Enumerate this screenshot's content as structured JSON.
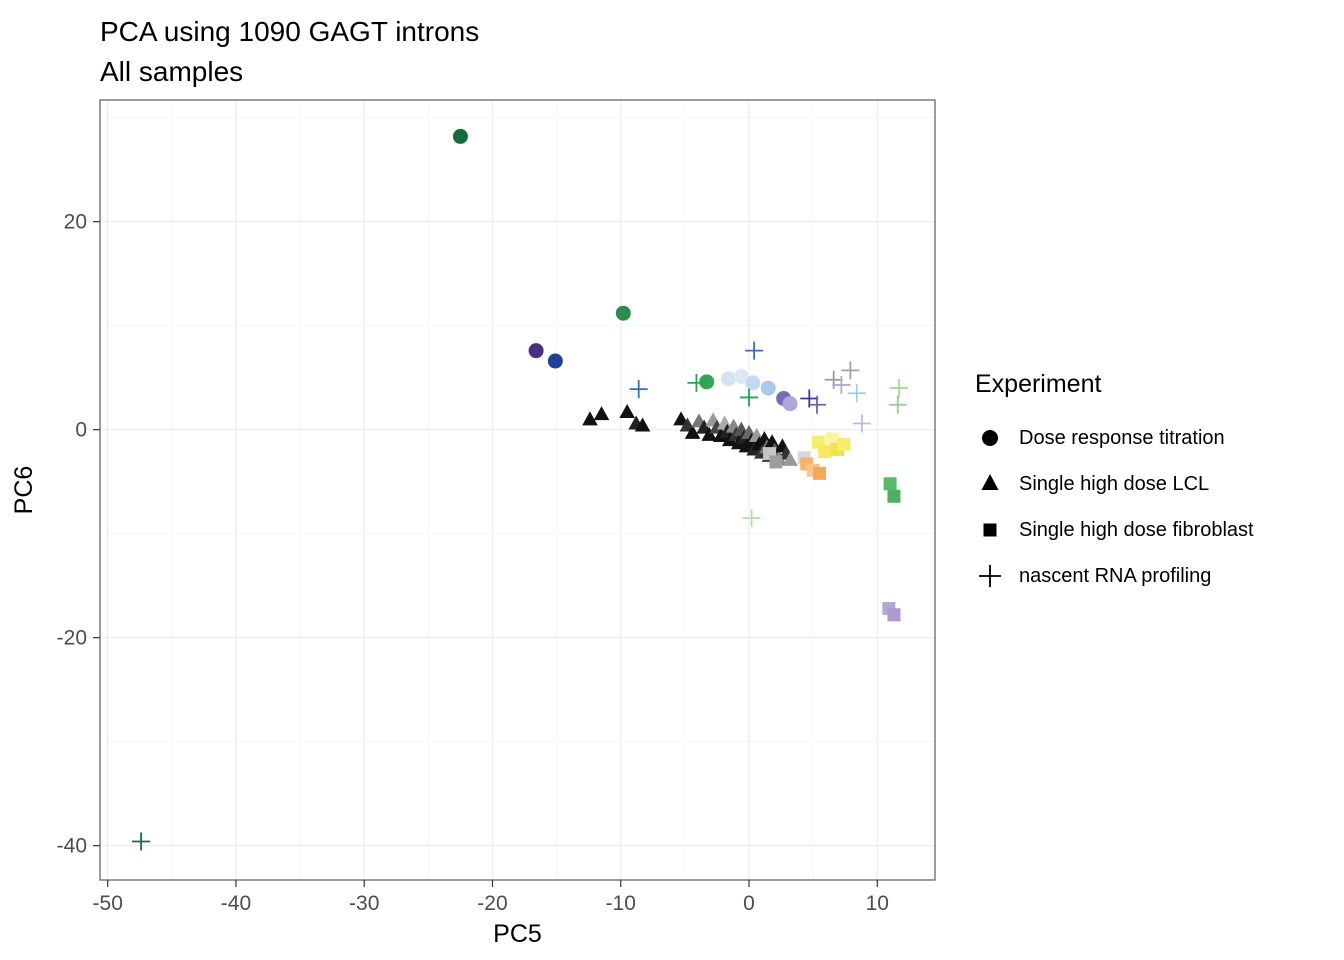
{
  "title": "PCA using 1090 GAGT introns",
  "subtitle": "All samples",
  "legend": {
    "title": "Experiment",
    "items": [
      {
        "shape": "circle",
        "label": "Dose response titration"
      },
      {
        "shape": "triangle",
        "label": "Single high dose LCL"
      },
      {
        "shape": "square",
        "label": "Single high dose fibroblast"
      },
      {
        "shape": "plus",
        "label": "nascent RNA profiling"
      }
    ]
  },
  "chart_data": {
    "type": "scatter",
    "title": "PCA using 1090 GAGT introns",
    "subtitle": "All samples",
    "xlabel": "PC5",
    "ylabel": "PC6",
    "xlim": [
      -50.6,
      14.5
    ],
    "ylim": [
      -43.3,
      31.7
    ],
    "xticks": [
      -50,
      -40,
      -30,
      -20,
      -10,
      0,
      10
    ],
    "yticks": [
      -40,
      -20,
      0,
      20
    ],
    "x_minor": [
      -45,
      -35,
      -25,
      -15,
      -5,
      5
    ],
    "y_minor": [
      -30,
      -10,
      10,
      30
    ],
    "grid": true,
    "legend_position": "right",
    "colors": {
      "grid_major": "#ececec",
      "grid_minor": "#f6f6f6",
      "panel_border": "#5a5a5a",
      "tick_label": "#4d4d4d",
      "axis_title": "#000000"
    },
    "series": [
      {
        "name": "Dose response titration",
        "shape": "circle",
        "points": [
          [
            -22.5,
            28.2,
            "#156b39"
          ],
          [
            -9.8,
            11.2,
            "#2e8b4f"
          ],
          [
            -16.6,
            7.6,
            "#46307f"
          ],
          [
            -15.1,
            6.6,
            "#1f3f99"
          ],
          [
            -3.3,
            4.6,
            "#37a353"
          ],
          [
            -1.6,
            4.9,
            "#d3e3f4"
          ],
          [
            -0.6,
            5.1,
            "#dbe9f6"
          ],
          [
            0.3,
            4.5,
            "#c3d9ef"
          ],
          [
            1.5,
            4.0,
            "#a9cae9"
          ],
          [
            2.7,
            3.0,
            "#7a6cb4"
          ],
          [
            3.2,
            2.5,
            "#b2a5d8"
          ]
        ]
      },
      {
        "name": "Single high dose LCL",
        "shape": "triangle",
        "points": [
          [
            -12.4,
            0.9,
            "#111111"
          ],
          [
            -11.5,
            1.4,
            "#111111"
          ],
          [
            -9.5,
            1.6,
            "#111111"
          ],
          [
            -8.8,
            0.5,
            "#222222"
          ],
          [
            -8.3,
            0.3,
            "#111111"
          ],
          [
            -5.3,
            0.9,
            "#111111"
          ],
          [
            -4.8,
            0.3,
            "#333333"
          ],
          [
            -4.4,
            -0.4,
            "#111111"
          ],
          [
            -3.9,
            0.7,
            "#777777"
          ],
          [
            -3.5,
            0.1,
            "#222222"
          ],
          [
            -3.1,
            -0.6,
            "#111111"
          ],
          [
            -2.8,
            0.8,
            "#999999"
          ],
          [
            -2.5,
            0.1,
            "#444444"
          ],
          [
            -2.2,
            -0.7,
            "#111111"
          ],
          [
            -1.9,
            0.5,
            "#aaaaaa"
          ],
          [
            -1.7,
            -0.3,
            "#222222"
          ],
          [
            -1.5,
            -1.1,
            "#111111"
          ],
          [
            -1.2,
            0.2,
            "#888888"
          ],
          [
            -1.0,
            -0.6,
            "#333333"
          ],
          [
            -0.8,
            -1.4,
            "#111111"
          ],
          [
            -0.6,
            -0.1,
            "#555555"
          ],
          [
            -0.4,
            -0.9,
            "#222222"
          ],
          [
            -0.2,
            -1.7,
            "#111111"
          ],
          [
            0.0,
            -0.4,
            "#666666"
          ],
          [
            0.2,
            -1.2,
            "#111111"
          ],
          [
            0.4,
            -2.0,
            "#222222"
          ],
          [
            0.6,
            -0.7,
            "#999999"
          ],
          [
            0.8,
            -1.5,
            "#111111"
          ],
          [
            1.0,
            -2.3,
            "#333333"
          ],
          [
            1.2,
            -1.0,
            "#111111"
          ],
          [
            1.4,
            -1.8,
            "#777777"
          ],
          [
            1.6,
            -2.6,
            "#222222"
          ],
          [
            1.8,
            -1.3,
            "#111111"
          ],
          [
            2.0,
            -2.1,
            "#555555"
          ],
          [
            2.3,
            -2.9,
            "#888888"
          ],
          [
            2.6,
            -1.7,
            "#111111"
          ],
          [
            2.9,
            -2.4,
            "#333333"
          ],
          [
            3.2,
            -3.0,
            "#999999"
          ]
        ]
      },
      {
        "name": "Single high dose fibroblast",
        "shape": "square",
        "points": [
          [
            1.6,
            -2.3,
            "#c4c4c4"
          ],
          [
            2.1,
            -3.1,
            "#9e9e9e"
          ],
          [
            4.3,
            -2.7,
            "#d9d9d9"
          ],
          [
            5.4,
            -1.2,
            "#f8ec6e"
          ],
          [
            5.9,
            -2.1,
            "#f6e75c"
          ],
          [
            6.5,
            -0.9,
            "#fbf3a0"
          ],
          [
            6.9,
            -1.9,
            "#f2e14e"
          ],
          [
            7.4,
            -1.4,
            "#f8ec6e"
          ],
          [
            4.5,
            -3.3,
            "#f6b26b"
          ],
          [
            5.0,
            -3.9,
            "#f9c489"
          ],
          [
            5.5,
            -4.2,
            "#f4a85c"
          ],
          [
            11.0,
            -5.2,
            "#5cb96b"
          ],
          [
            11.3,
            -6.4,
            "#4fae60"
          ],
          [
            10.9,
            -17.2,
            "#b7a7d6"
          ],
          [
            11.3,
            -17.8,
            "#ab99cf"
          ]
        ]
      },
      {
        "name": "nascent RNA profiling",
        "shape": "plus",
        "points": [
          [
            -47.4,
            -39.6,
            "#1b6e42"
          ],
          [
            -8.6,
            3.9,
            "#3a6fb5"
          ],
          [
            -4.1,
            4.5,
            "#2f9e57"
          ],
          [
            0.4,
            7.6,
            "#3a6fb5"
          ],
          [
            0.0,
            3.1,
            "#2aa05a"
          ],
          [
            4.7,
            3.0,
            "#3d3a8e"
          ],
          [
            5.3,
            2.4,
            "#6b67ab"
          ],
          [
            6.6,
            4.8,
            "#9b9b9b"
          ],
          [
            7.9,
            5.7,
            "#a3a3a3"
          ],
          [
            7.2,
            4.3,
            "#b3a9d3"
          ],
          [
            8.4,
            3.5,
            "#a9c7e8"
          ],
          [
            8.8,
            0.6,
            "#c3b8e0"
          ],
          [
            11.7,
            4.0,
            "#a5d89e"
          ],
          [
            11.6,
            2.4,
            "#93cf8c"
          ],
          [
            0.2,
            -8.5,
            "#b8e0ae"
          ]
        ]
      }
    ]
  }
}
